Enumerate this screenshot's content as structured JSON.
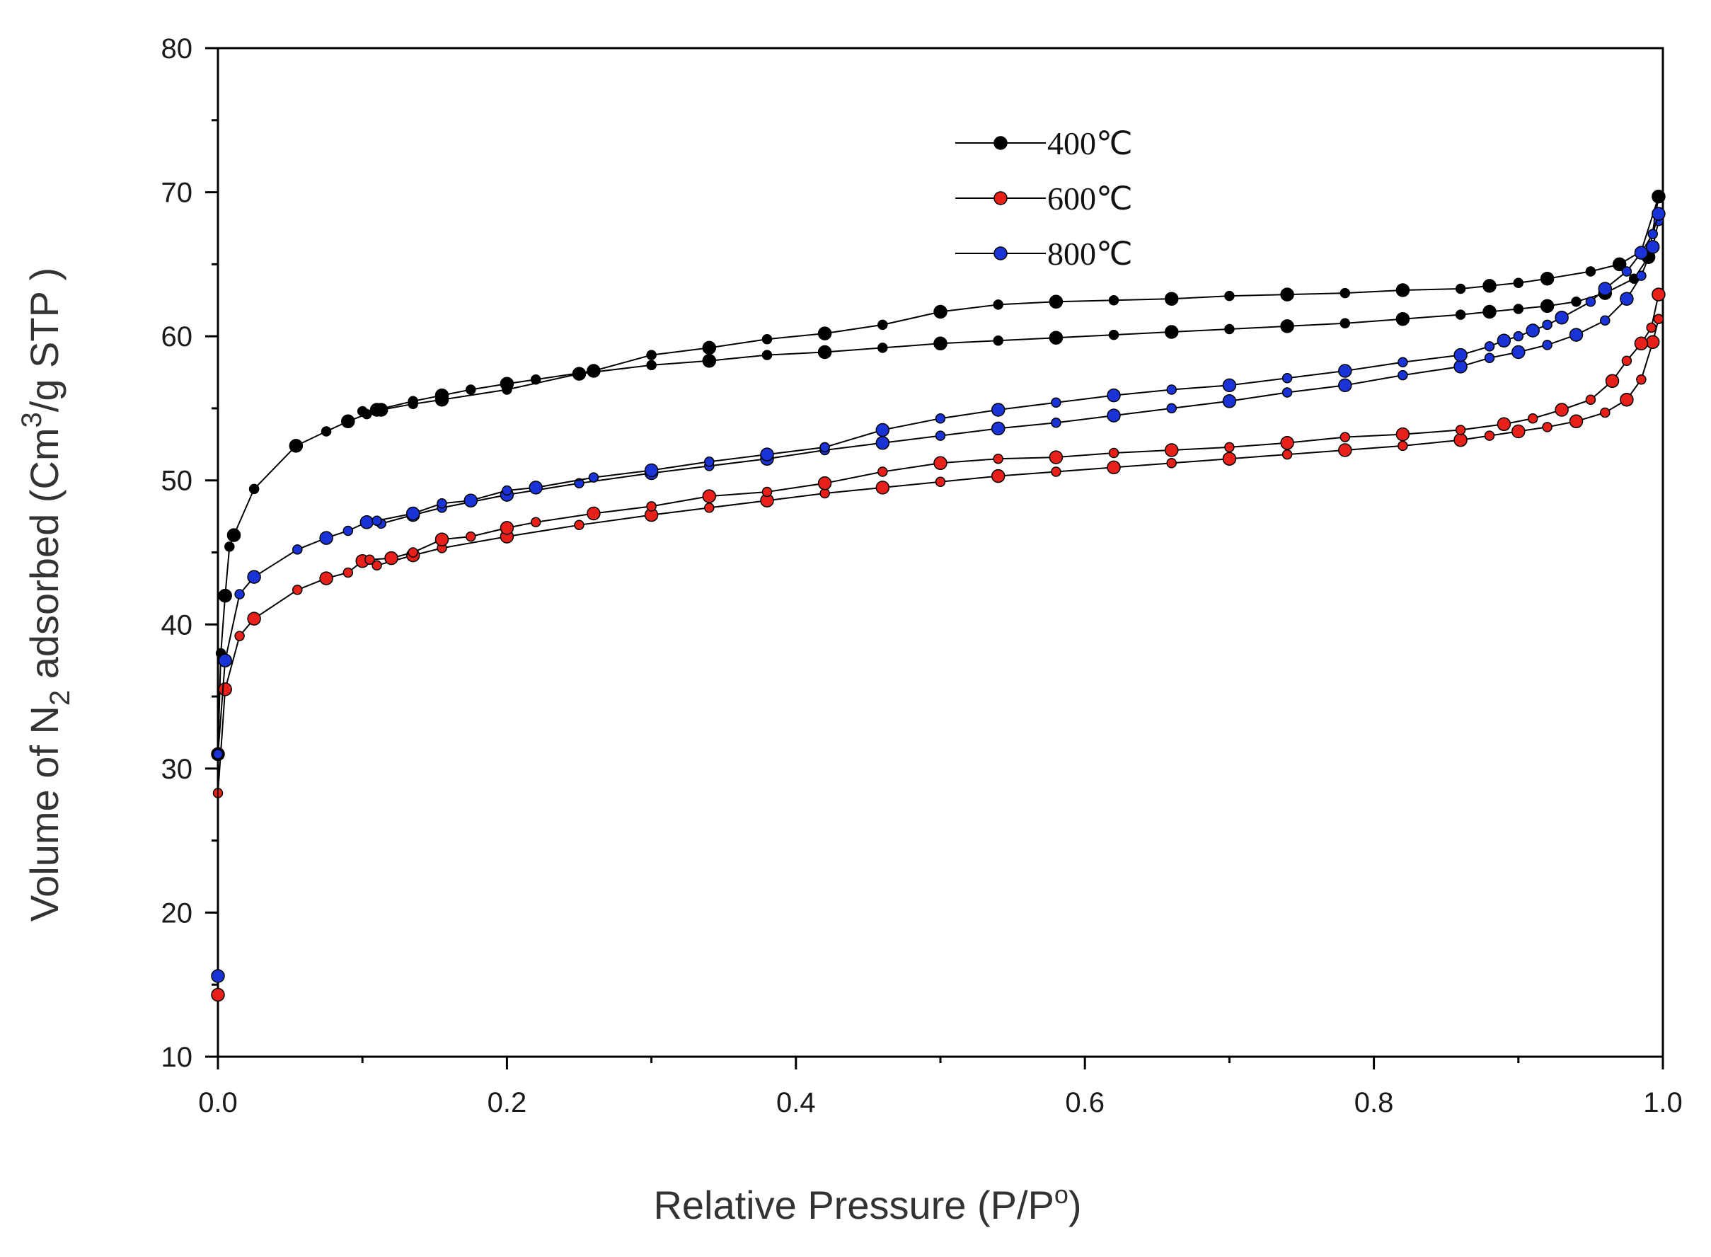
{
  "chart_data": {
    "type": "scatter",
    "title": "",
    "xlabel": "Relative Pressure (P/P",
    "xlabel_sup": "o",
    "xlabel_end": ")",
    "ylabel_parts": [
      "Volume of N",
      "2",
      " adsorbed (Cm",
      "3",
      "/g STP )"
    ],
    "xlim": [
      0.0,
      1.0
    ],
    "ylim": [
      10,
      80
    ],
    "xticks": [
      "0.0",
      "0.2",
      "0.4",
      "0.6",
      "0.8",
      "1.0"
    ],
    "xtick_values": [
      0.0,
      0.2,
      0.4,
      0.6,
      0.8,
      1.0
    ],
    "yticks": [
      "10",
      "20",
      "30",
      "40",
      "50",
      "60",
      "70",
      "80"
    ],
    "ytick_values": [
      10,
      20,
      30,
      40,
      50,
      60,
      70,
      80
    ],
    "legend_position": "top-center",
    "series": [
      {
        "name": "400℃",
        "color": "#000000",
        "adsorption": [
          [
            0.0,
            31.0
          ],
          [
            0.002,
            38.0
          ],
          [
            0.005,
            42.0
          ],
          [
            0.008,
            45.4
          ],
          [
            0.011,
            46.2
          ],
          [
            0.025,
            49.4
          ],
          [
            0.054,
            52.4
          ],
          [
            0.075,
            53.4
          ],
          [
            0.09,
            54.1
          ],
          [
            0.103,
            54.6
          ],
          [
            0.113,
            54.9
          ],
          [
            0.135,
            55.3
          ],
          [
            0.155,
            55.6
          ],
          [
            0.2,
            56.3
          ],
          [
            0.25,
            57.4
          ],
          [
            0.3,
            58.0
          ],
          [
            0.34,
            58.3
          ],
          [
            0.38,
            58.7
          ],
          [
            0.42,
            58.9
          ],
          [
            0.46,
            59.2
          ],
          [
            0.5,
            59.5
          ],
          [
            0.54,
            59.7
          ],
          [
            0.58,
            59.9
          ],
          [
            0.62,
            60.1
          ],
          [
            0.66,
            60.3
          ],
          [
            0.7,
            60.5
          ],
          [
            0.74,
            60.7
          ],
          [
            0.78,
            60.9
          ],
          [
            0.82,
            61.2
          ],
          [
            0.86,
            61.5
          ],
          [
            0.88,
            61.7
          ],
          [
            0.9,
            61.9
          ],
          [
            0.92,
            62.1
          ],
          [
            0.94,
            62.4
          ],
          [
            0.96,
            63.0
          ],
          [
            0.98,
            64.0
          ],
          [
            0.99,
            65.5
          ],
          [
            0.997,
            69.7
          ]
        ],
        "desorption": [
          [
            0.997,
            69.7
          ],
          [
            0.985,
            65.9
          ],
          [
            0.97,
            65.0
          ],
          [
            0.95,
            64.5
          ],
          [
            0.92,
            64.0
          ],
          [
            0.9,
            63.7
          ],
          [
            0.88,
            63.5
          ],
          [
            0.86,
            63.3
          ],
          [
            0.82,
            63.2
          ],
          [
            0.78,
            63.0
          ],
          [
            0.74,
            62.9
          ],
          [
            0.7,
            62.8
          ],
          [
            0.66,
            62.6
          ],
          [
            0.62,
            62.5
          ],
          [
            0.58,
            62.4
          ],
          [
            0.54,
            62.2
          ],
          [
            0.5,
            61.7
          ],
          [
            0.46,
            60.8
          ],
          [
            0.42,
            60.2
          ],
          [
            0.38,
            59.8
          ],
          [
            0.34,
            59.2
          ],
          [
            0.3,
            58.7
          ],
          [
            0.26,
            57.6
          ],
          [
            0.22,
            57.0
          ],
          [
            0.2,
            56.7
          ],
          [
            0.175,
            56.3
          ],
          [
            0.155,
            55.9
          ],
          [
            0.135,
            55.5
          ],
          [
            0.11,
            54.9
          ],
          [
            0.1,
            54.8
          ]
        ]
      },
      {
        "name": "600℃",
        "color": "#e8201a",
        "adsorption": [
          [
            0.0,
            14.3
          ],
          [
            0.0,
            28.3
          ],
          [
            0.005,
            35.5
          ],
          [
            0.015,
            39.2
          ],
          [
            0.025,
            40.4
          ],
          [
            0.055,
            42.4
          ],
          [
            0.075,
            43.2
          ],
          [
            0.09,
            43.6
          ],
          [
            0.1,
            44.4
          ],
          [
            0.11,
            44.1
          ],
          [
            0.135,
            44.8
          ],
          [
            0.155,
            45.3
          ],
          [
            0.2,
            46.1
          ],
          [
            0.25,
            46.9
          ],
          [
            0.3,
            47.6
          ],
          [
            0.34,
            48.1
          ],
          [
            0.38,
            48.6
          ],
          [
            0.42,
            49.1
          ],
          [
            0.46,
            49.5
          ],
          [
            0.5,
            49.9
          ],
          [
            0.54,
            50.3
          ],
          [
            0.58,
            50.6
          ],
          [
            0.62,
            50.9
          ],
          [
            0.66,
            51.2
          ],
          [
            0.7,
            51.5
          ],
          [
            0.74,
            51.8
          ],
          [
            0.78,
            52.1
          ],
          [
            0.82,
            52.4
          ],
          [
            0.86,
            52.8
          ],
          [
            0.88,
            53.1
          ],
          [
            0.9,
            53.4
          ],
          [
            0.92,
            53.7
          ],
          [
            0.94,
            54.1
          ],
          [
            0.96,
            54.7
          ],
          [
            0.975,
            55.6
          ],
          [
            0.985,
            57.0
          ],
          [
            0.993,
            59.6
          ],
          [
            0.997,
            61.2
          ]
        ],
        "desorption": [
          [
            0.997,
            62.9
          ],
          [
            0.992,
            60.6
          ],
          [
            0.985,
            59.5
          ],
          [
            0.975,
            58.3
          ],
          [
            0.965,
            56.9
          ],
          [
            0.95,
            55.6
          ],
          [
            0.93,
            54.9
          ],
          [
            0.91,
            54.3
          ],
          [
            0.89,
            53.9
          ],
          [
            0.86,
            53.5
          ],
          [
            0.82,
            53.2
          ],
          [
            0.78,
            53.0
          ],
          [
            0.74,
            52.6
          ],
          [
            0.7,
            52.3
          ],
          [
            0.66,
            52.1
          ],
          [
            0.62,
            51.9
          ],
          [
            0.58,
            51.6
          ],
          [
            0.54,
            51.5
          ],
          [
            0.5,
            51.2
          ],
          [
            0.46,
            50.6
          ],
          [
            0.42,
            49.8
          ],
          [
            0.38,
            49.2
          ],
          [
            0.34,
            48.9
          ],
          [
            0.3,
            48.2
          ],
          [
            0.26,
            47.7
          ],
          [
            0.22,
            47.1
          ],
          [
            0.2,
            46.7
          ],
          [
            0.175,
            46.1
          ],
          [
            0.155,
            45.9
          ],
          [
            0.135,
            45.0
          ],
          [
            0.12,
            44.6
          ],
          [
            0.105,
            44.5
          ]
        ]
      },
      {
        "name": "800℃",
        "color": "#1a33d6",
        "adsorption": [
          [
            0.0,
            15.6
          ],
          [
            0.0,
            31.0
          ],
          [
            0.005,
            37.5
          ],
          [
            0.015,
            42.1
          ],
          [
            0.025,
            43.3
          ],
          [
            0.055,
            45.2
          ],
          [
            0.075,
            46.0
          ],
          [
            0.09,
            46.5
          ],
          [
            0.103,
            47.1
          ],
          [
            0.113,
            47.0
          ],
          [
            0.135,
            47.6
          ],
          [
            0.155,
            48.1
          ],
          [
            0.2,
            49.0
          ],
          [
            0.25,
            49.8
          ],
          [
            0.3,
            50.5
          ],
          [
            0.34,
            51.0
          ],
          [
            0.38,
            51.5
          ],
          [
            0.42,
            52.1
          ],
          [
            0.46,
            52.6
          ],
          [
            0.5,
            53.1
          ],
          [
            0.54,
            53.6
          ],
          [
            0.58,
            54.0
          ],
          [
            0.62,
            54.5
          ],
          [
            0.66,
            55.0
          ],
          [
            0.7,
            55.5
          ],
          [
            0.74,
            56.1
          ],
          [
            0.78,
            56.6
          ],
          [
            0.82,
            57.3
          ],
          [
            0.86,
            57.9
          ],
          [
            0.88,
            58.5
          ],
          [
            0.9,
            58.9
          ],
          [
            0.92,
            59.4
          ],
          [
            0.94,
            60.1
          ],
          [
            0.96,
            61.1
          ],
          [
            0.975,
            62.6
          ],
          [
            0.985,
            64.2
          ],
          [
            0.993,
            66.2
          ],
          [
            0.997,
            68.0
          ]
        ],
        "desorption": [
          [
            0.997,
            68.5
          ],
          [
            0.993,
            67.1
          ],
          [
            0.985,
            65.8
          ],
          [
            0.975,
            64.5
          ],
          [
            0.96,
            63.3
          ],
          [
            0.95,
            62.4
          ],
          [
            0.93,
            61.3
          ],
          [
            0.92,
            60.8
          ],
          [
            0.91,
            60.4
          ],
          [
            0.9,
            60.0
          ],
          [
            0.89,
            59.7
          ],
          [
            0.88,
            59.3
          ],
          [
            0.86,
            58.7
          ],
          [
            0.82,
            58.2
          ],
          [
            0.78,
            57.6
          ],
          [
            0.74,
            57.1
          ],
          [
            0.7,
            56.6
          ],
          [
            0.66,
            56.3
          ],
          [
            0.62,
            55.9
          ],
          [
            0.58,
            55.4
          ],
          [
            0.54,
            54.9
          ],
          [
            0.5,
            54.3
          ],
          [
            0.46,
            53.5
          ],
          [
            0.42,
            52.3
          ],
          [
            0.38,
            51.8
          ],
          [
            0.34,
            51.3
          ],
          [
            0.3,
            50.7
          ],
          [
            0.26,
            50.2
          ],
          [
            0.22,
            49.5
          ],
          [
            0.2,
            49.3
          ],
          [
            0.175,
            48.6
          ],
          [
            0.155,
            48.4
          ],
          [
            0.135,
            47.7
          ],
          [
            0.11,
            47.2
          ]
        ]
      }
    ]
  }
}
